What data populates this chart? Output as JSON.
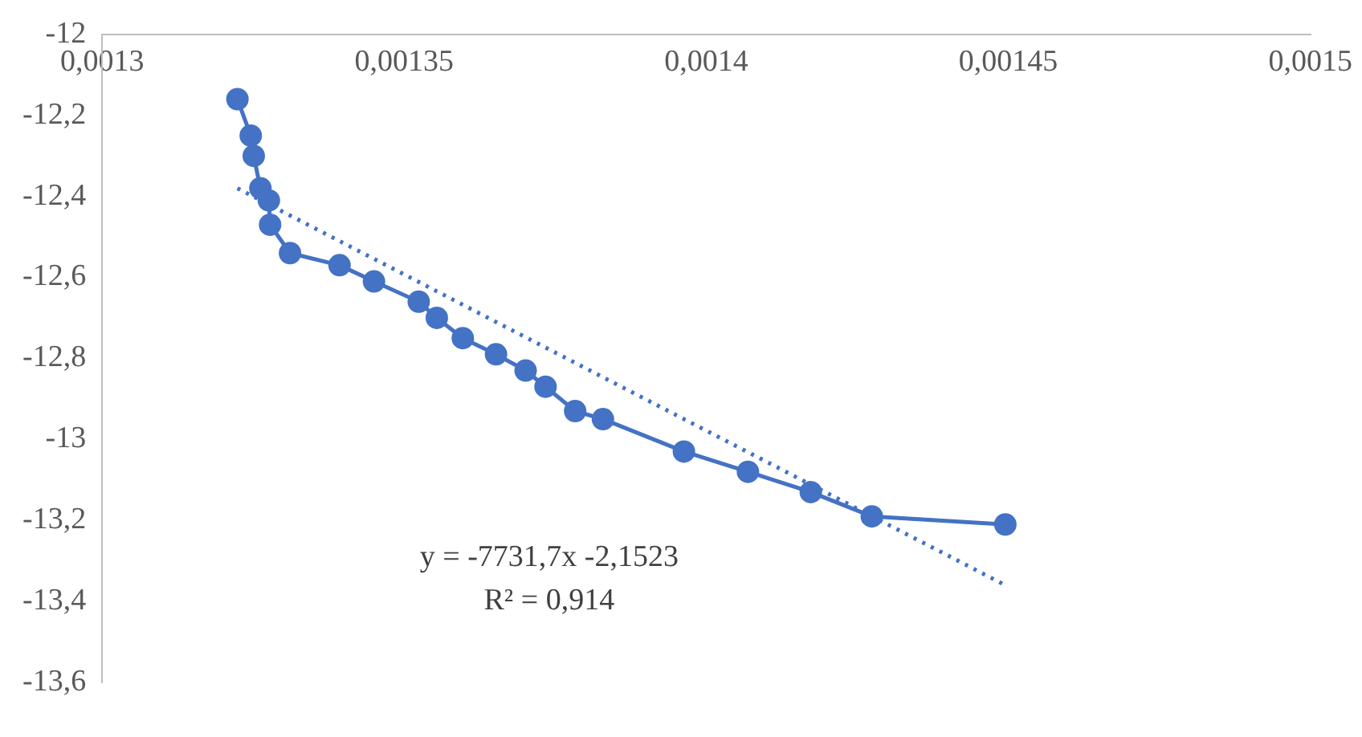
{
  "chart_data": {
    "type": "line",
    "series": [
      {
        "color": "#4472c4",
        "marker": "circle",
        "line_style": "solid",
        "x": [
          0.0013224,
          0.0013246,
          0.0013251,
          0.0013262,
          0.0013276,
          0.0013278,
          0.0013311,
          0.0013393,
          0.001345,
          0.0013524,
          0.0013554,
          0.0013597,
          0.0013652,
          0.0013701,
          0.0013734,
          0.0013783,
          0.0013829,
          0.0013963,
          0.0014069,
          0.0014173,
          0.0014274,
          0.0014495
        ],
        "values": [
          -12.16,
          -12.25,
          -12.3,
          -12.38,
          -12.41,
          -12.47,
          -12.54,
          -12.57,
          -12.61,
          -12.66,
          -12.7,
          -12.75,
          -12.79,
          -12.83,
          -12.87,
          -12.93,
          -12.95,
          -13.03,
          -13.08,
          -13.13,
          -13.19,
          -13.21
        ]
      },
      {
        "color": "#4472c4",
        "marker": "none",
        "line_style": "dotted",
        "x": [
          0.0013224,
          0.0014495
        ],
        "values": [
          -12.38,
          -13.36
        ]
      }
    ],
    "xlim": [
      0.0013,
      0.0015
    ],
    "xticks": [
      {
        "value": 0.0013,
        "label": "0,0013"
      },
      {
        "value": 0.00135,
        "label": "0,00135"
      },
      {
        "value": 0.0014,
        "label": "0,0014"
      },
      {
        "value": 0.00145,
        "label": "0,00145"
      },
      {
        "value": 0.0015,
        "label": "0,0015"
      }
    ],
    "ylim": [
      -13.6,
      -12
    ],
    "yticks": [
      {
        "value": -13.6,
        "label": "-13,6"
      },
      {
        "value": -13.4,
        "label": "-13,4"
      },
      {
        "value": -13.2,
        "label": "-13,2"
      },
      {
        "value": -13,
        "label": "-13"
      },
      {
        "value": -12.8,
        "label": "-12,8"
      },
      {
        "value": -12.6,
        "label": "-12,6"
      },
      {
        "value": -12.4,
        "label": "-12,4"
      },
      {
        "value": -12.2,
        "label": "-12,2"
      },
      {
        "value": -12,
        "label": "-12"
      }
    ],
    "grid": false,
    "legend": false,
    "annotations": [
      "y = -7731,7x -2,1523",
      "R² = 0,914"
    ]
  }
}
